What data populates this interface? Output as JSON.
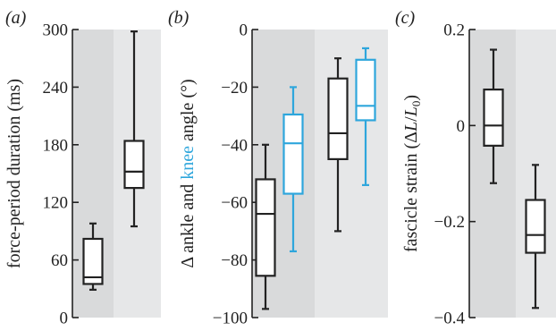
{
  "colors": {
    "band_dark": "#d9dadb",
    "band_light": "#e6e7e8",
    "ankle": "#222222",
    "knee": "#2ea6dc"
  },
  "chart_data": [
    {
      "type": "box",
      "panel_label": "(a)",
      "ylabel": "force-period duration (ms)",
      "ylim": [
        0,
        300
      ],
      "yticks": [
        0,
        60,
        120,
        180,
        240,
        300
      ],
      "ytick_labels": [
        "0",
        "60",
        "120",
        "180",
        "240",
        "300"
      ],
      "background_bands": [
        "dark",
        "light"
      ],
      "boxes": [
        {
          "group": 0,
          "series": "ankle",
          "min": 29,
          "q1": 35,
          "median": 42,
          "q3": 82,
          "max": 98
        },
        {
          "group": 1,
          "series": "ankle",
          "min": 95,
          "q1": 135,
          "median": 152,
          "q3": 184,
          "max": 298
        }
      ]
    },
    {
      "type": "box",
      "panel_label": "(b)",
      "ylabel_parts": [
        "Δ ankle and ",
        "knee",
        " angle (°)"
      ],
      "ylim": [
        -100,
        0
      ],
      "yticks": [
        -100,
        -80,
        -60,
        -40,
        -20,
        0
      ],
      "ytick_labels": [
        "−100",
        "−80",
        "−60",
        "−40",
        "−20",
        "0"
      ],
      "background_bands": [
        "dark",
        "light"
      ],
      "boxes": [
        {
          "group": 0,
          "series": "ankle",
          "min": -97,
          "q1": -85.5,
          "median": -64,
          "q3": -52,
          "max": -40
        },
        {
          "group": 0,
          "series": "knee",
          "min": -77,
          "q1": -57,
          "median": -39.5,
          "q3": -29.5,
          "max": -20
        },
        {
          "group": 1,
          "series": "ankle",
          "min": -70,
          "q1": -45,
          "median": -36,
          "q3": -17,
          "max": -10
        },
        {
          "group": 1,
          "series": "knee",
          "min": -54,
          "q1": -31.5,
          "median": -26.5,
          "q3": -10.5,
          "max": -6.5
        }
      ]
    },
    {
      "type": "box",
      "panel_label": "(c)",
      "ylabel_parts": [
        "fascicle strain (Δ",
        "L",
        "/",
        "L",
        "0",
        ")"
      ],
      "ylim": [
        -0.4,
        0.2
      ],
      "yticks": [
        -0.4,
        -0.2,
        0,
        0.2
      ],
      "ytick_labels": [
        "−0.4",
        "−0.2",
        "0",
        "0.2"
      ],
      "background_bands": [
        "dark",
        "light"
      ],
      "boxes": [
        {
          "group": 0,
          "series": "ankle",
          "min": -0.12,
          "q1": -0.042,
          "median": 0,
          "q3": 0.075,
          "max": 0.158
        },
        {
          "group": 1,
          "series": "ankle",
          "min": -0.38,
          "q1": -0.265,
          "median": -0.228,
          "q3": -0.155,
          "max": -0.082
        }
      ]
    }
  ]
}
